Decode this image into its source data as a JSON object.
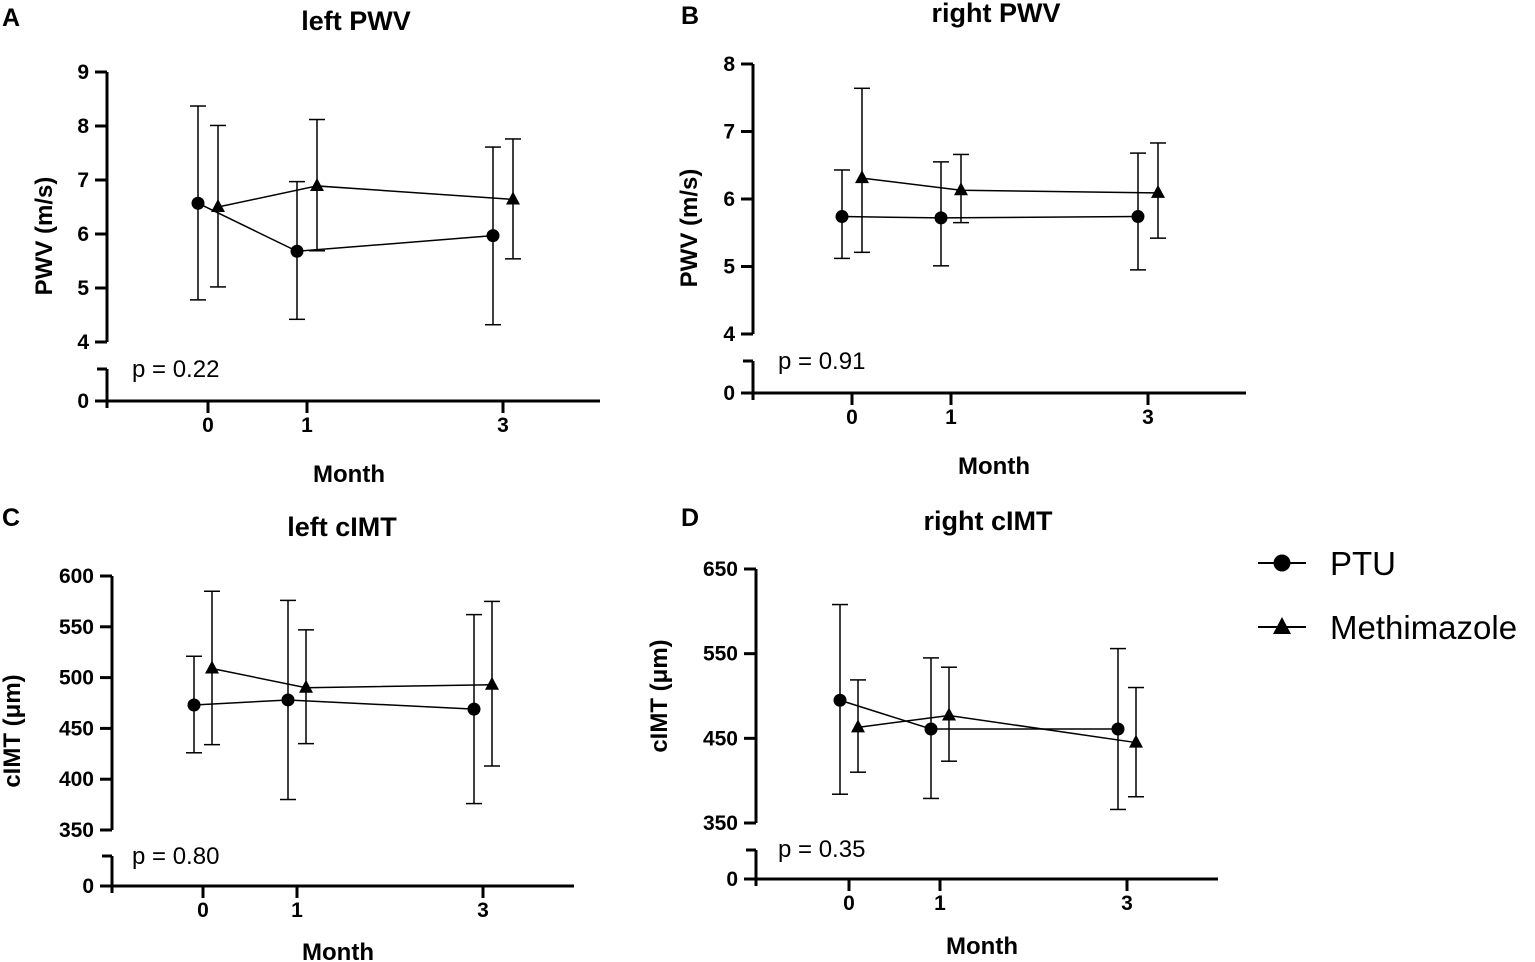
{
  "legend": [
    {
      "name": "PTU",
      "marker": "circle"
    },
    {
      "name": "Methimazole",
      "marker": "triangle"
    }
  ],
  "colors": {
    "ink": "#000000",
    "background": "#ffffff"
  },
  "chart_data": [
    {
      "type": "line",
      "letter": "A",
      "title": "left PWV",
      "xlabel": "Month",
      "ylabel": "PWV (m/s)",
      "x": [
        0,
        1,
        3
      ],
      "ylim": [
        4,
        9
      ],
      "yticks": [
        4,
        5,
        6,
        7,
        8,
        9
      ],
      "ybreak_ticks": [
        0
      ],
      "p_text": "p = 0.22",
      "series": [
        {
          "name": "PTU",
          "marker": "circle",
          "mean": [
            6.57,
            5.68,
            5.97
          ],
          "lower": [
            4.78,
            4.42,
            4.32
          ],
          "upper": [
            8.37,
            6.97,
            7.61
          ]
        },
        {
          "name": "Methimazole",
          "marker": "triangle",
          "mean": [
            6.5,
            6.89,
            6.64
          ],
          "lower": [
            5.02,
            5.69,
            5.54
          ],
          "upper": [
            8.01,
            8.12,
            7.76
          ]
        }
      ]
    },
    {
      "type": "line",
      "letter": "B",
      "title": "right PWV",
      "xlabel": "Month",
      "ylabel": "PWV (m/s)",
      "x": [
        0,
        1,
        3
      ],
      "ylim": [
        4,
        8
      ],
      "yticks": [
        4,
        5,
        6,
        7,
        8
      ],
      "ybreak_ticks": [
        0
      ],
      "p_text": "p = 0.91",
      "series": [
        {
          "name": "PTU",
          "marker": "circle",
          "mean": [
            5.74,
            5.72,
            5.74
          ],
          "lower": [
            5.12,
            5.01,
            4.95
          ],
          "upper": [
            6.43,
            6.55,
            6.68
          ]
        },
        {
          "name": "Methimazole",
          "marker": "triangle",
          "mean": [
            6.31,
            6.13,
            6.09
          ],
          "lower": [
            5.21,
            5.65,
            5.42
          ],
          "upper": [
            7.64,
            6.66,
            6.83
          ]
        }
      ]
    },
    {
      "type": "line",
      "letter": "C",
      "title": "left cIMT",
      "xlabel": "Month",
      "ylabel": "cIMT (μm)",
      "x": [
        0,
        1,
        3
      ],
      "ylim": [
        350,
        600
      ],
      "yticks": [
        350,
        400,
        450,
        500,
        550,
        600
      ],
      "ybreak_ticks": [
        0
      ],
      "p_text": "p = 0.80",
      "series": [
        {
          "name": "PTU",
          "marker": "circle",
          "mean": [
            473,
            478,
            469
          ],
          "lower": [
            426,
            380,
            376
          ],
          "upper": [
            521,
            576,
            562
          ]
        },
        {
          "name": "Methimazole",
          "marker": "triangle",
          "mean": [
            509,
            490,
            493
          ],
          "lower": [
            434,
            435,
            413
          ],
          "upper": [
            585,
            547,
            575
          ]
        }
      ]
    },
    {
      "type": "line",
      "letter": "D",
      "title": "right cIMT",
      "xlabel": "Month",
      "ylabel": "cIMT (μm)",
      "x": [
        0,
        1,
        3
      ],
      "ylim": [
        350,
        650
      ],
      "yticks": [
        350,
        450,
        550,
        650
      ],
      "ybreak_ticks": [
        0
      ],
      "p_text": "p = 0.35",
      "series": [
        {
          "name": "PTU",
          "marker": "circle",
          "mean": [
            495,
            461,
            461
          ],
          "lower": [
            384,
            379,
            366
          ],
          "upper": [
            608,
            545,
            556
          ]
        },
        {
          "name": "Methimazole",
          "marker": "triangle",
          "mean": [
            463,
            477,
            445
          ],
          "lower": [
            410,
            423,
            381
          ],
          "upper": [
            519,
            534,
            510
          ]
        }
      ]
    }
  ]
}
